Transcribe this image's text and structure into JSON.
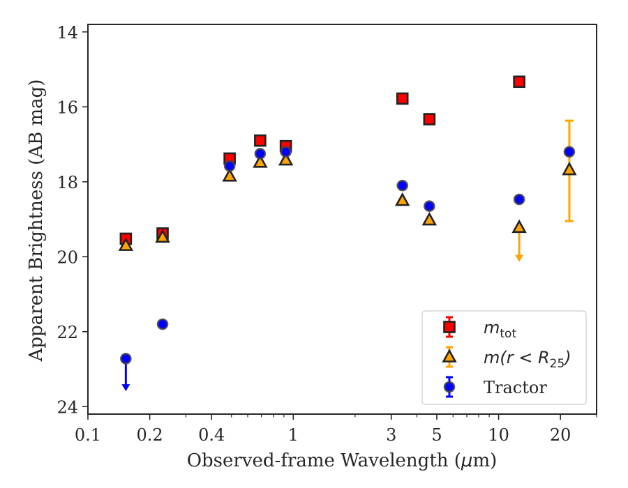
{
  "chart_data": {
    "type": "scatter",
    "xlabel_pre": "Observed-frame Wavelength (",
    "xlabel_mu": "μ",
    "xlabel_post": "m)",
    "ylabel": "Apparent Brightness (AB mag)",
    "x_scale": "log",
    "xlim": [
      0.1,
      30
    ],
    "ylim": [
      24.2,
      13.8
    ],
    "y_inverted": true,
    "x_ticks": [
      0.1,
      0.2,
      0.4,
      1,
      3,
      5,
      10,
      20
    ],
    "x_tick_labels": [
      "0.1",
      "0.2",
      "0.4",
      "1",
      "3",
      "5",
      "10",
      "20"
    ],
    "y_ticks": [
      14,
      16,
      18,
      20,
      22,
      24
    ],
    "y_tick_labels": [
      "14",
      "16",
      "18",
      "20",
      "22",
      "24"
    ],
    "grid": false,
    "legend_position": "lower-right",
    "series": [
      {
        "name": "m_tot",
        "legend_main": "m",
        "legend_sub": "tot",
        "marker": "square",
        "color": "#ff0000",
        "errcolor": "#ff0000",
        "points": [
          {
            "x": 0.153,
            "y": 19.52
          },
          {
            "x": 0.231,
            "y": 19.38
          },
          {
            "x": 0.49,
            "y": 17.38
          },
          {
            "x": 0.69,
            "y": 16.9
          },
          {
            "x": 0.92,
            "y": 17.05
          },
          {
            "x": 3.4,
            "y": 15.78
          },
          {
            "x": 4.6,
            "y": 16.33
          },
          {
            "x": 12.6,
            "y": 15.33
          }
        ]
      },
      {
        "name": "m(r<R25)",
        "legend_main": "m(r < R",
        "legend_sub": "25",
        "legend_close": ")",
        "marker": "triangle",
        "color": "#ffa500",
        "errcolor": "#ffa500",
        "points": [
          {
            "x": 0.153,
            "y": 19.7
          },
          {
            "x": 0.231,
            "y": 19.48
          },
          {
            "x": 0.49,
            "y": 17.85
          },
          {
            "x": 0.69,
            "y": 17.48
          },
          {
            "x": 0.92,
            "y": 17.42
          },
          {
            "x": 3.4,
            "y": 18.5
          },
          {
            "x": 4.6,
            "y": 19.02
          },
          {
            "x": 12.6,
            "y": 19.22,
            "upper_limit_to": 20.1
          },
          {
            "x": 22.1,
            "y": 17.68,
            "err_low": 16.37,
            "err_high": 19.05
          }
        ]
      },
      {
        "name": "Tractor",
        "legend_main": "Tractor",
        "marker": "circle",
        "color": "#0000ff",
        "errcolor": "#0000ff",
        "points": [
          {
            "x": 0.153,
            "y": 22.72,
            "upper_limit_to": 23.55
          },
          {
            "x": 0.231,
            "y": 21.8
          },
          {
            "x": 0.49,
            "y": 17.58
          },
          {
            "x": 0.69,
            "y": 17.25
          },
          {
            "x": 0.92,
            "y": 17.2
          },
          {
            "x": 3.4,
            "y": 18.1
          },
          {
            "x": 4.6,
            "y": 18.65
          },
          {
            "x": 12.6,
            "y": 18.47
          },
          {
            "x": 22.1,
            "y": 17.2
          }
        ]
      }
    ]
  }
}
